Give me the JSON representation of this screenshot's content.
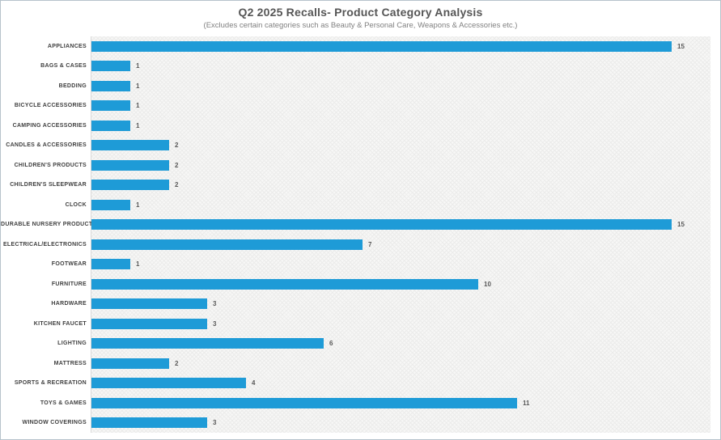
{
  "header": {
    "title": "Q2 2025 Recalls- Product Category Analysis",
    "subtitle": "(Excludes certain categories such as Beauty & Personal Care, Weapons & Accessories etc.)"
  },
  "colors": {
    "bar": "#1e9bd7",
    "title_text": "#565656",
    "subtitle_text": "#808080",
    "category_text": "#3f3f3f",
    "value_text": "#595959",
    "plot_background": "#f7f7f6",
    "frame_border": "#b6c2cb"
  },
  "chart_data": {
    "type": "bar",
    "orientation": "horizontal",
    "title": "Q2 2025 Recalls- Product Category Analysis",
    "subtitle": "(Excludes certain categories such as Beauty & Personal Care, Weapons & Accessories etc.)",
    "categories": [
      "APPLIANCES",
      "BAGS & CASES",
      "BEDDING",
      "BICYCLE ACCESSORIES",
      "CAMPING ACCESSORIES",
      "CANDLES & ACCESSORIES",
      "CHILDREN'S PRODUCTS",
      "CHILDREN'S SLEEPWEAR",
      "CLOCK",
      "DURABLE NURSERY PRODUCT",
      "ELECTRICAL/ELECTRONICS",
      "FOOTWEAR",
      "FURNITURE",
      "HARDWARE",
      "KITCHEN FAUCET",
      "LIGHTING",
      "MATTRESS",
      "SPORTS & RECREATION",
      "TOYS & GAMES",
      "WINDOW COVERINGS"
    ],
    "values": [
      15,
      1,
      1,
      1,
      1,
      2,
      2,
      2,
      1,
      15,
      7,
      1,
      10,
      3,
      3,
      6,
      2,
      4,
      11,
      3
    ],
    "xlim": [
      0,
      16
    ],
    "grid": false,
    "legend": false,
    "data_labels": true
  }
}
